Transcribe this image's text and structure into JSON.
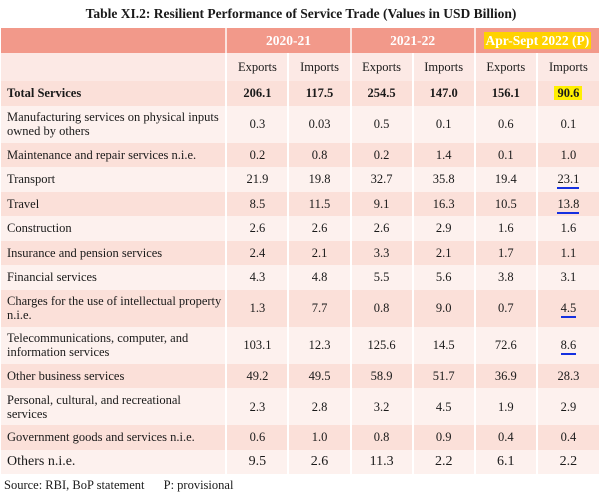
{
  "title": "Table XI.2:  Resilient Performance of Service Trade (Values in USD Billion)",
  "periods": [
    "2020-21",
    "2021-22",
    "Apr-Sept 2022 (P)"
  ],
  "subheaders": [
    "Exports",
    "Imports",
    "Exports",
    "Imports",
    "Exports",
    "Imports"
  ],
  "rows": [
    {
      "label": "Total Services",
      "values": [
        "206.1",
        "117.5",
        "254.5",
        "147.0",
        "156.1",
        "90.6"
      ]
    },
    {
      "label": "Manufacturing services on physical inputs owned by others",
      "values": [
        "0.3",
        "0.03",
        "0.5",
        "0.1",
        "0.6",
        "0.1"
      ]
    },
    {
      "label": "Maintenance and repair services n.i.e.",
      "values": [
        "0.2",
        "0.8",
        "0.2",
        "1.4",
        "0.1",
        "1.0"
      ]
    },
    {
      "label": "Transport",
      "values": [
        "21.9",
        "19.8",
        "32.7",
        "35.8",
        "19.4",
        "23.1"
      ]
    },
    {
      "label": "Travel",
      "values": [
        "8.5",
        "11.5",
        "9.1",
        "16.3",
        "10.5",
        "13.8"
      ]
    },
    {
      "label": "Construction",
      "values": [
        "2.6",
        "2.6",
        "2.6",
        "2.9",
        "1.6",
        "1.6"
      ]
    },
    {
      "label": "Insurance and pension services",
      "values": [
        "2.4",
        "2.1",
        "3.3",
        "2.1",
        "1.7",
        "1.1"
      ]
    },
    {
      "label": "Financial services",
      "values": [
        "4.3",
        "4.8",
        "5.5",
        "5.6",
        "3.8",
        "3.1"
      ]
    },
    {
      "label": "Charges for the use of intellectual property n.i.e.",
      "values": [
        "1.3",
        "7.7",
        "0.8",
        "9.0",
        "0.7",
        "4.5"
      ]
    },
    {
      "label": "Telecommunications, computer, and information services",
      "values": [
        "103.1",
        "12.3",
        "125.6",
        "14.5",
        "72.6",
        "8.6"
      ]
    },
    {
      "label": "Other business services",
      "values": [
        "49.2",
        "49.5",
        "58.9",
        "51.7",
        "36.9",
        "28.3"
      ]
    },
    {
      "label": "Personal, cultural, and recreational services",
      "values": [
        "2.3",
        "2.8",
        "3.2",
        "4.5",
        "1.9",
        "2.9"
      ]
    },
    {
      "label": "Government goods and services n.i.e.",
      "values": [
        "0.6",
        "1.0",
        "0.8",
        "0.9",
        "0.4",
        "0.4"
      ]
    },
    {
      "label": "Others n.i.e.",
      "values": [
        "9.5",
        "2.6",
        "11.3",
        "2.2",
        "6.1",
        "2.2"
      ]
    }
  ],
  "source": "Source: RBI, BoP statement",
  "note": "P: provisional",
  "colors": {
    "header": "#f2998a",
    "highlight": "#ffd200",
    "cell_highlight": "#ffef00",
    "underline": "#1530e0"
  }
}
